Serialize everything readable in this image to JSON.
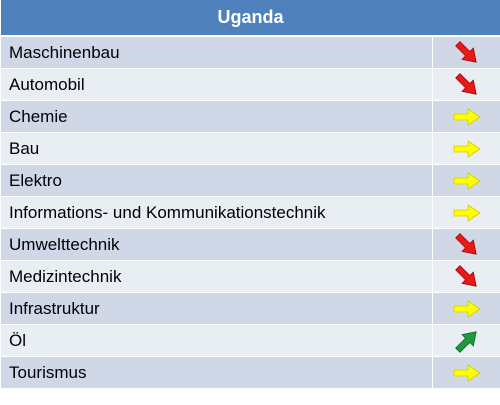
{
  "header": {
    "title": "Uganda"
  },
  "table": {
    "rows": [
      "Maschinenbau",
      "Automobil",
      "Chemie",
      "Bau",
      "Elektro",
      "Informations- und Kommunikationstechnik",
      "Umwelttechnik",
      "Medizintechnik",
      "Infrastruktur",
      "Öl",
      "Tourismus"
    ]
  }
}
